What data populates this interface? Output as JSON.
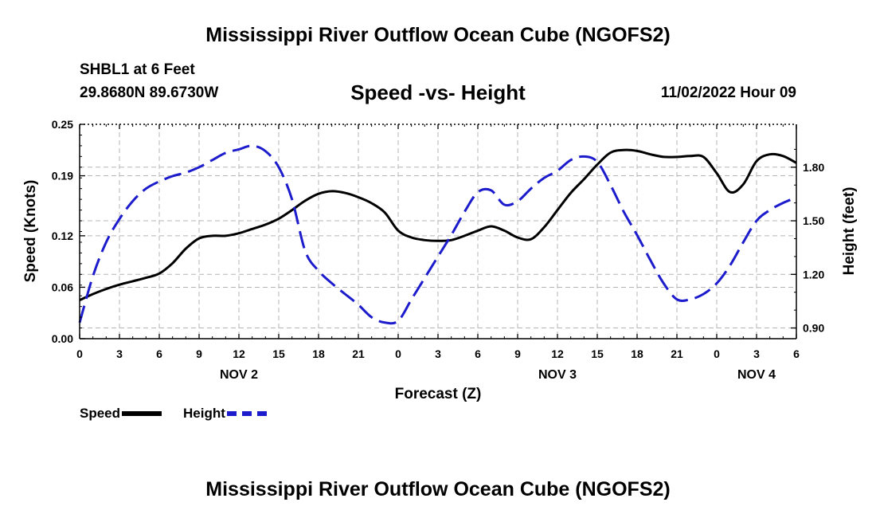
{
  "header": {
    "main_title": "Mississippi River Outflow Ocean Cube (NGOFS2)",
    "footer_title": "Mississippi River Outflow Ocean Cube (NGOFS2)",
    "station": "SHBL1 at 6 Feet",
    "coordinates": "29.8680N  89.6730W",
    "chart_title": "Speed -vs- Height",
    "datetime": "11/02/2022 Hour 09"
  },
  "chart_data": {
    "type": "line",
    "title": "Speed -vs- Height",
    "xlabel": "Forecast (Z)",
    "ylabel": "Speed (Knots)",
    "y2label": "Height (feet)",
    "xlim": [
      0,
      54
    ],
    "ylim": [
      0,
      0.25
    ],
    "y2lim": [
      0.84,
      2.04
    ],
    "grid": true,
    "x_ticks": [
      0,
      3,
      6,
      9,
      12,
      15,
      18,
      21,
      24,
      27,
      30,
      33,
      36,
      39,
      42,
      45,
      48,
      51,
      54
    ],
    "x_tick_labels": [
      "0",
      "3",
      "6",
      "9",
      "12",
      "15",
      "18",
      "21",
      "0",
      "3",
      "6",
      "9",
      "12",
      "15",
      "18",
      "21",
      "0",
      "3",
      "6"
    ],
    "date_labels": [
      {
        "x": 12,
        "label": "NOV 2"
      },
      {
        "x": 36,
        "label": "NOV 3"
      },
      {
        "x": 51,
        "label": "NOV 4"
      }
    ],
    "y_ticks": [
      0.0,
      0.06,
      0.12,
      0.19,
      0.25
    ],
    "y_tick_labels": [
      "0.00",
      "0.06",
      "0.12",
      "0.19",
      "0.25"
    ],
    "y2_ticks": [
      0.9,
      1.2,
      1.5,
      1.8
    ],
    "y2_tick_labels": [
      "0.90",
      "1.20",
      "1.50",
      "1.80"
    ],
    "series": [
      {
        "name": "Speed",
        "axis": "left",
        "color": "#000000",
        "style": "solid",
        "x": [
          0,
          1,
          2,
          3,
          4,
          5,
          6,
          7,
          8,
          9,
          10,
          11,
          12,
          13,
          14,
          15,
          16,
          17,
          18,
          19,
          20,
          21,
          22,
          23,
          24,
          25,
          26,
          27,
          28,
          29,
          30,
          31,
          32,
          33,
          34,
          35,
          36,
          37,
          38,
          39,
          40,
          41,
          42,
          43,
          44,
          45,
          46,
          47,
          48,
          49,
          50,
          51,
          52,
          53,
          54
        ],
        "values": [
          0.045,
          0.052,
          0.058,
          0.063,
          0.067,
          0.071,
          0.076,
          0.088,
          0.105,
          0.117,
          0.12,
          0.12,
          0.123,
          0.128,
          0.133,
          0.14,
          0.15,
          0.161,
          0.169,
          0.172,
          0.17,
          0.165,
          0.158,
          0.147,
          0.126,
          0.118,
          0.115,
          0.114,
          0.115,
          0.12,
          0.126,
          0.131,
          0.126,
          0.118,
          0.116,
          0.13,
          0.15,
          0.17,
          0.186,
          0.203,
          0.217,
          0.22,
          0.219,
          0.215,
          0.212,
          0.212,
          0.213,
          0.212,
          0.193,
          0.171,
          0.18,
          0.207,
          0.215,
          0.213,
          0.205
        ]
      },
      {
        "name": "Height",
        "axis": "right",
        "color": "#1c1ccc",
        "style": "dashed",
        "x": [
          0,
          1,
          2,
          3,
          4,
          5,
          6,
          7,
          8,
          9,
          10,
          11,
          12,
          13,
          14,
          15,
          16,
          17,
          18,
          19,
          20,
          21,
          22,
          23,
          24,
          25,
          26,
          27,
          28,
          29,
          30,
          31,
          32,
          33,
          34,
          35,
          36,
          37,
          38,
          39,
          40,
          41,
          42,
          43,
          44,
          45,
          46,
          47,
          48,
          49,
          50,
          51,
          52,
          53,
          54
        ],
        "values": [
          0.93,
          1.19,
          1.38,
          1.51,
          1.61,
          1.68,
          1.72,
          1.75,
          1.77,
          1.8,
          1.84,
          1.88,
          1.9,
          1.92,
          1.89,
          1.8,
          1.62,
          1.33,
          1.22,
          1.15,
          1.09,
          1.03,
          0.96,
          0.93,
          0.94,
          1.06,
          1.18,
          1.3,
          1.42,
          1.55,
          1.66,
          1.67,
          1.59,
          1.61,
          1.68,
          1.74,
          1.78,
          1.84,
          1.86,
          1.83,
          1.7,
          1.55,
          1.42,
          1.28,
          1.15,
          1.06,
          1.06,
          1.09,
          1.15,
          1.25,
          1.38,
          1.5,
          1.56,
          1.6,
          1.63
        ]
      }
    ]
  },
  "legend": {
    "speed_label": "Speed",
    "height_label": "Height"
  }
}
